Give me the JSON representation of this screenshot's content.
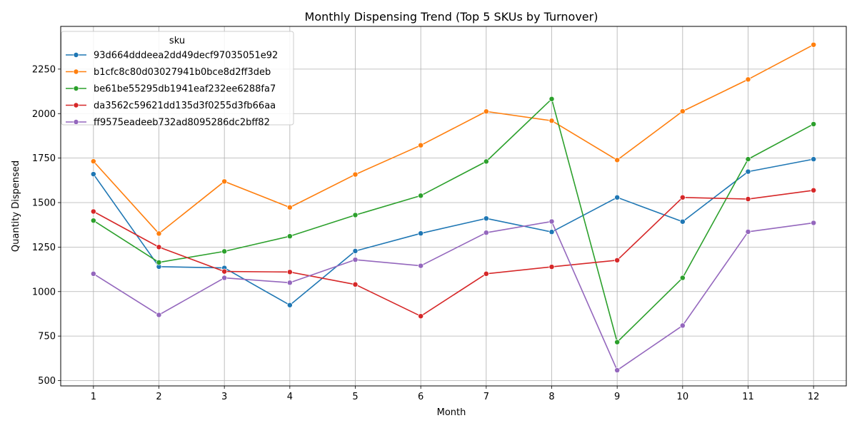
{
  "chart_data": {
    "type": "line",
    "title": "Monthly Dispensing Trend (Top 5 SKUs by Turnover)",
    "xlabel": "Month",
    "ylabel": "Quantity Dispensed",
    "x": [
      1,
      2,
      3,
      4,
      5,
      6,
      7,
      8,
      9,
      10,
      11,
      12
    ],
    "xlim": [
      0.5,
      12.5
    ],
    "ylim": [
      470,
      2490
    ],
    "yticks": [
      500,
      750,
      1000,
      1250,
      1500,
      1750,
      2000,
      2250
    ],
    "grid": true,
    "legend": {
      "title": "sku",
      "placement": "upper-left"
    },
    "series": [
      {
        "name": "93d664dddeea2dd49decf97035051e92",
        "color": "#1f77b4",
        "values": [
          1660,
          1140,
          1133,
          924,
          1228,
          1327,
          1411,
          1335,
          1529,
          1393,
          1674,
          1744
        ]
      },
      {
        "name": "b1cfc8c80d03027941b0bce8d2ff3deb",
        "color": "#ff7f0e",
        "values": [
          1732,
          1326,
          1619,
          1473,
          1658,
          1822,
          2012,
          1960,
          1739,
          2013,
          2192,
          2387
        ]
      },
      {
        "name": "be61be55295db1941eaf232ee6288fa7",
        "color": "#2ca02c",
        "values": [
          1399,
          1164,
          1226,
          1311,
          1430,
          1539,
          1731,
          2082,
          716,
          1077,
          1744,
          1941
        ]
      },
      {
        "name": "da3562c59621dd135d3f0255d3fb66aa",
        "color": "#d62728",
        "values": [
          1450,
          1250,
          1113,
          1110,
          1040,
          862,
          1100,
          1139,
          1176,
          1529,
          1520,
          1569
        ]
      },
      {
        "name": "ff9575eadeeb732ad8095286dc2bff82",
        "color": "#9467bd",
        "values": [
          1100,
          869,
          1077,
          1050,
          1179,
          1145,
          1331,
          1394,
          558,
          809,
          1336,
          1386
        ]
      }
    ]
  }
}
